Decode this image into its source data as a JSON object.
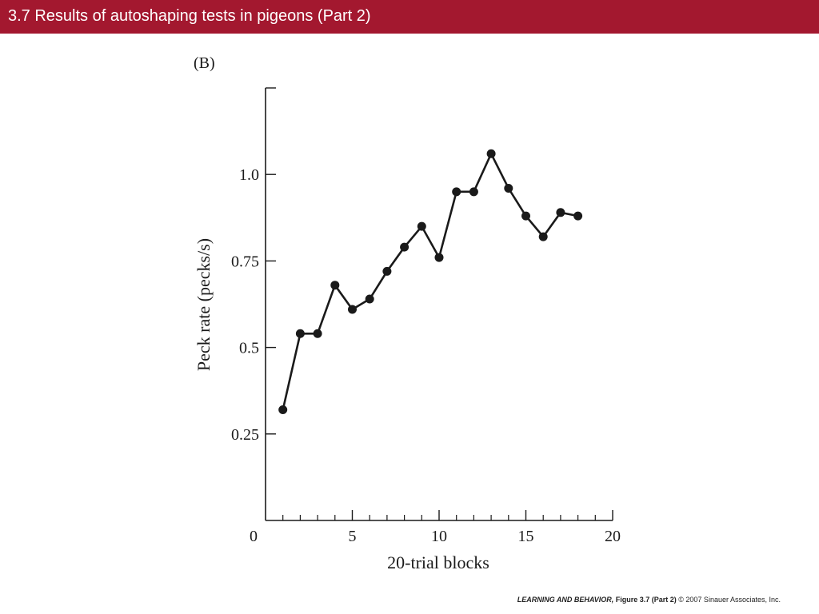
{
  "slide": {
    "title": "3.7  Results of autoshaping tests in pigeons (Part 2)",
    "accent_color": "#a3182f"
  },
  "footer": {
    "book": "LEARNING AND BEHAVIOR,",
    "figure": "Figure 3.7 (Part 2)",
    "copyright": "© 2007 Sinauer Associates, Inc."
  },
  "chart_data": {
    "type": "line",
    "panel_label": "(B)",
    "xlabel": "20-trial blocks",
    "ylabel": "Peck rate (pecks/s)",
    "xlim": [
      0,
      20
    ],
    "ylim": [
      0,
      1.25
    ],
    "x_ticks": [
      0,
      5,
      10,
      15,
      20
    ],
    "x_tick_labels": [
      "0",
      "5",
      "10",
      "15",
      "20"
    ],
    "x_minor_ticks": [
      1,
      2,
      3,
      4,
      6,
      7,
      8,
      9,
      11,
      12,
      13,
      14,
      16,
      17,
      18,
      19
    ],
    "y_ticks": [
      0.25,
      0.5,
      0.75,
      1.0
    ],
    "y_tick_labels": [
      "0.25",
      "0.5",
      "0.75",
      "1.0"
    ],
    "grid": false,
    "color": "#1a1a1a",
    "series": [
      {
        "x": [
          1,
          2,
          3,
          4,
          5,
          6,
          7,
          8,
          9,
          10,
          11,
          12,
          13,
          14,
          15,
          16,
          17,
          18
        ],
        "values": [
          0.32,
          0.54,
          0.54,
          0.68,
          0.61,
          0.64,
          0.72,
          0.79,
          0.85,
          0.76,
          0.95,
          0.95,
          1.06,
          0.96,
          0.88,
          0.82,
          0.89,
          0.88
        ]
      }
    ]
  }
}
